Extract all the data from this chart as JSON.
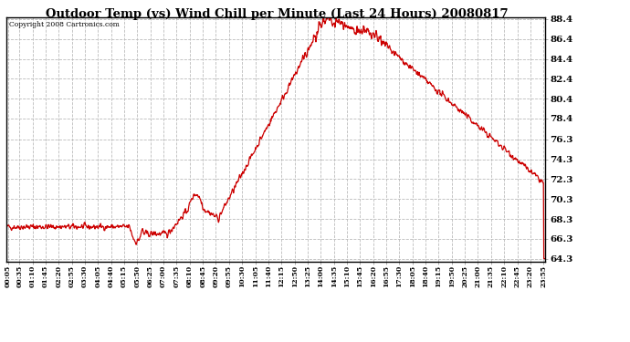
{
  "title": "Outdoor Temp (vs) Wind Chill per Minute (Last 24 Hours) 20080817",
  "copyright_text": "Copyright 2008 Cartronics.com",
  "y_min": 64.3,
  "y_max": 88.4,
  "y_ticks": [
    64.3,
    66.3,
    68.3,
    70.3,
    72.3,
    74.3,
    76.3,
    78.4,
    80.4,
    82.4,
    84.4,
    86.4,
    88.4
  ],
  "plot_bg_color": "#ffffff",
  "fig_bg_color": "#ffffff",
  "line_color": "#cc0000",
  "grid_color": "#bbbbbb",
  "title_color": "#000000",
  "copyright_color": "#000000",
  "tick_label_color": "#000000",
  "x_labels": [
    "00:05",
    "00:35",
    "01:10",
    "01:45",
    "02:20",
    "02:55",
    "03:30",
    "04:05",
    "04:40",
    "05:15",
    "05:50",
    "06:25",
    "07:00",
    "07:35",
    "08:10",
    "08:45",
    "09:20",
    "09:55",
    "10:30",
    "11:05",
    "11:40",
    "12:15",
    "12:50",
    "13:25",
    "14:00",
    "14:35",
    "15:10",
    "15:45",
    "16:20",
    "16:55",
    "17:30",
    "18:05",
    "18:40",
    "19:15",
    "19:50",
    "20:25",
    "21:00",
    "21:35",
    "22:10",
    "22:45",
    "23:20",
    "23:55"
  ]
}
